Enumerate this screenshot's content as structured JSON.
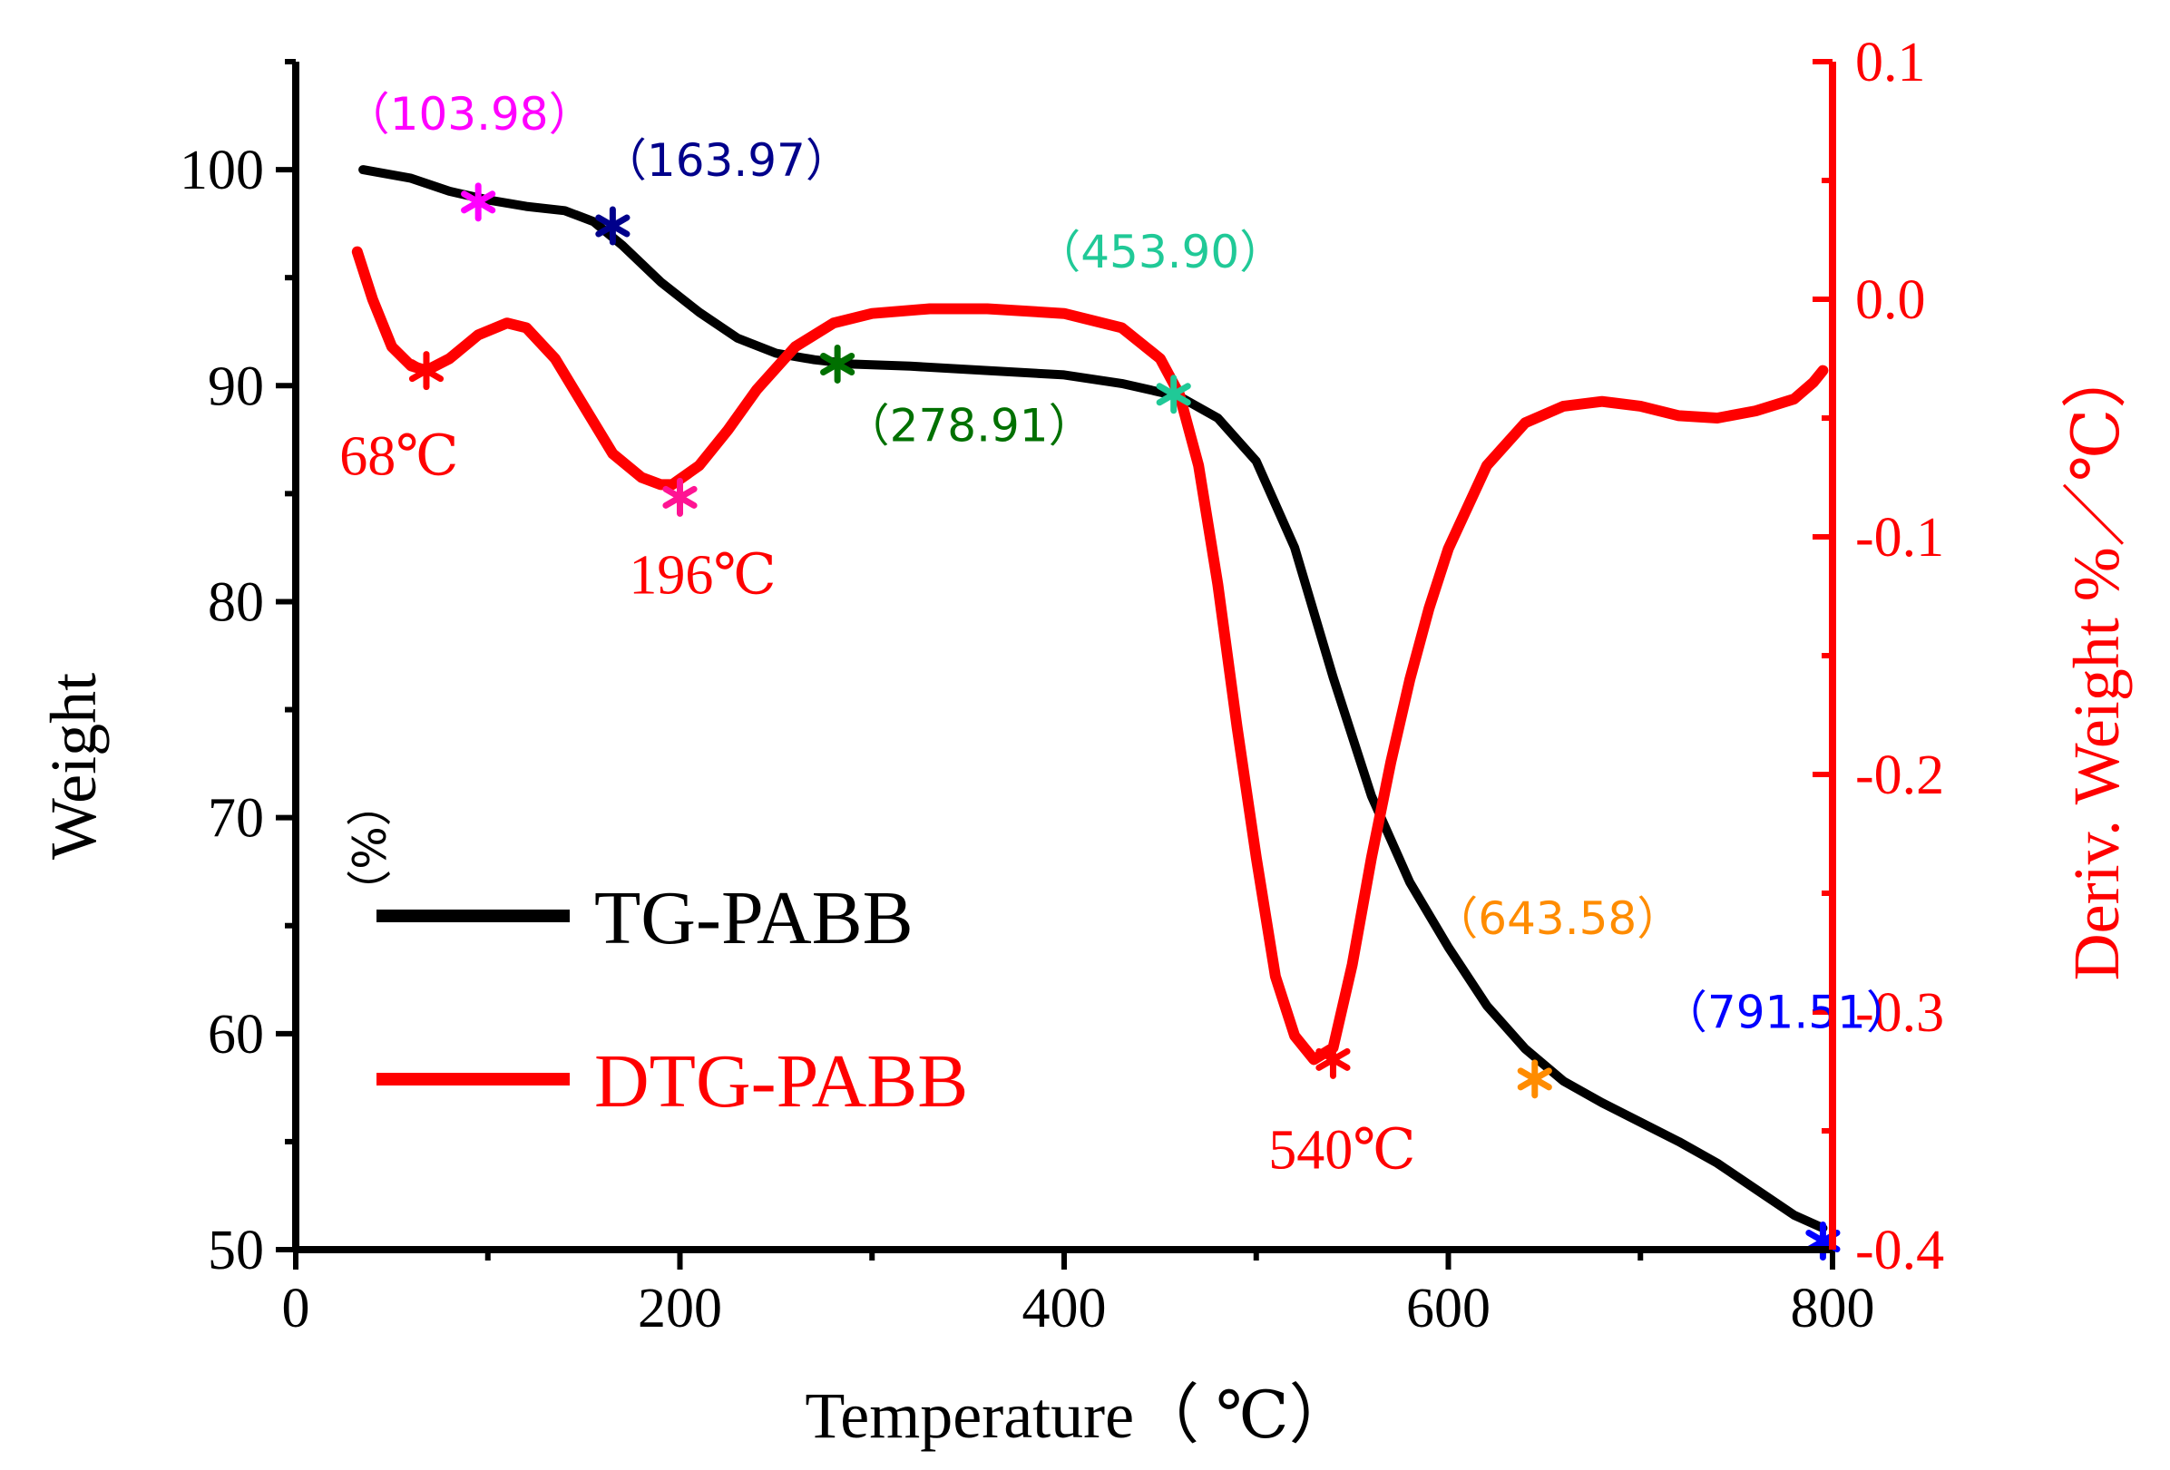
{
  "chart_data": {
    "type": "line",
    "xlabel": "Temperature（ ℃）",
    "ylabel": "Weight",
    "ylabel_unit": "（%）",
    "y2label": "Deriv. Weight  %／℃）",
    "xlim": [
      0,
      800
    ],
    "ylim": [
      50,
      105
    ],
    "y2lim": [
      -0.4,
      0.1
    ],
    "xticks": [
      "0",
      "200",
      "400",
      "600",
      "800"
    ],
    "yticks": [
      "50",
      "60",
      "70",
      "80",
      "90",
      "100"
    ],
    "y2ticks": [
      "-0.4",
      "-0.3",
      "-0.2",
      "-0.1",
      "0.0",
      "0.1"
    ],
    "legend_position": "lower-left",
    "series": [
      {
        "name": "TG-PABB",
        "axis": "left",
        "color": "#000000",
        "x": [
          35,
          60,
          80,
          100,
          120,
          140,
          155,
          170,
          190,
          210,
          230,
          250,
          270,
          290,
          320,
          360,
          400,
          430,
          460,
          480,
          500,
          520,
          540,
          560,
          580,
          600,
          620,
          640,
          660,
          680,
          700,
          720,
          740,
          760,
          780,
          795
        ],
        "y": [
          100,
          99.6,
          99.0,
          98.6,
          98.3,
          98.1,
          97.6,
          96.5,
          94.8,
          93.4,
          92.2,
          91.5,
          91.2,
          91.0,
          90.9,
          90.7,
          90.5,
          90.1,
          89.5,
          88.5,
          86.5,
          82.5,
          76.5,
          71.0,
          67.0,
          64.0,
          61.3,
          59.3,
          57.8,
          56.8,
          55.9,
          55.0,
          54.0,
          52.8,
          51.6,
          51.0
        ]
      },
      {
        "name": "DTG-PABB",
        "axis": "right",
        "color": "#ff0000",
        "x": [
          32,
          40,
          50,
          60,
          68,
          80,
          95,
          110,
          120,
          135,
          150,
          165,
          180,
          190,
          196,
          210,
          225,
          240,
          260,
          280,
          300,
          330,
          360,
          400,
          430,
          450,
          460,
          470,
          480,
          490,
          500,
          510,
          520,
          530,
          540,
          550,
          560,
          570,
          580,
          590,
          600,
          620,
          640,
          660,
          680,
          700,
          720,
          740,
          760,
          780,
          790,
          795
        ],
        "y": [
          0.02,
          0.0,
          -0.02,
          -0.028,
          -0.03,
          -0.025,
          -0.015,
          -0.01,
          -0.012,
          -0.025,
          -0.045,
          -0.065,
          -0.075,
          -0.078,
          -0.078,
          -0.07,
          -0.055,
          -0.038,
          -0.02,
          -0.01,
          -0.006,
          -0.004,
          -0.004,
          -0.006,
          -0.012,
          -0.025,
          -0.04,
          -0.07,
          -0.12,
          -0.18,
          -0.235,
          -0.285,
          -0.31,
          -0.32,
          -0.315,
          -0.28,
          -0.235,
          -0.195,
          -0.16,
          -0.13,
          -0.105,
          -0.07,
          -0.052,
          -0.045,
          -0.043,
          -0.045,
          -0.049,
          -0.05,
          -0.047,
          -0.042,
          -0.035,
          -0.03
        ]
      }
    ],
    "markers": [
      {
        "label": "（103.98）",
        "x": 95,
        "y": 98.5,
        "axis": "left",
        "color": "#ff00ff"
      },
      {
        "label": "（163.97）",
        "x": 165,
        "y": 97.4,
        "axis": "left",
        "color": "#00008b"
      },
      {
        "label": "（278.91）",
        "x": 282,
        "y": 91.0,
        "axis": "left",
        "color": "#007000"
      },
      {
        "label": "（453.90）",
        "x": 457,
        "y": 89.6,
        "axis": "left",
        "color": "#20c997"
      },
      {
        "label": "（643.58）",
        "x": 645,
        "y": 57.9,
        "axis": "left",
        "color": "#ff8c00"
      },
      {
        "label": "（791.51）",
        "x": 795,
        "y": 50.4,
        "axis": "left",
        "color": "#0000ff"
      }
    ],
    "peaks": [
      {
        "label": "68℃",
        "x": 68,
        "y": -0.03,
        "axis": "right",
        "color": "#ff0000"
      },
      {
        "label": "196℃",
        "x": 200,
        "y": -0.078,
        "axis": "right",
        "color": "#ff1493"
      },
      {
        "label": "540℃",
        "x": 540,
        "y": -0.32,
        "axis": "right",
        "color": "#ff0000"
      }
    ]
  }
}
